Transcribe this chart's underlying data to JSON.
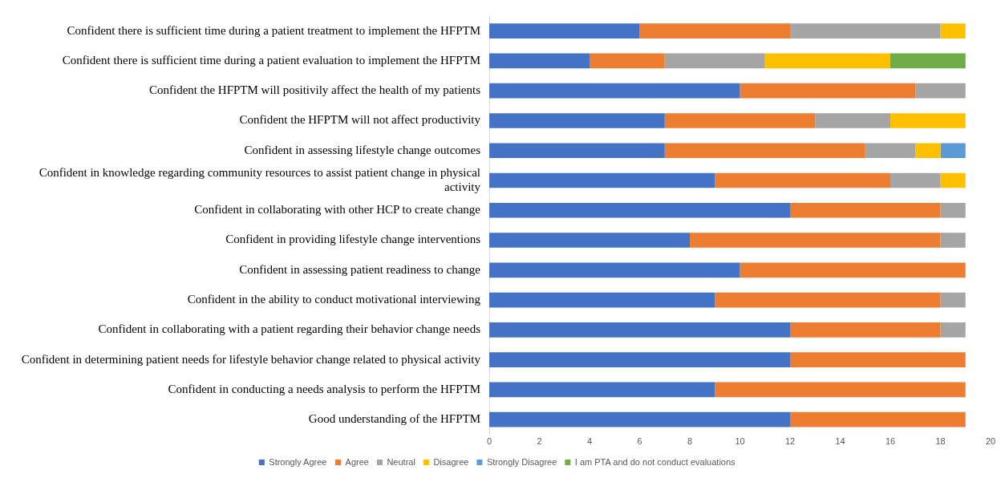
{
  "chart_data": {
    "type": "bar",
    "orientation": "horizontal",
    "stacked": true,
    "categories": [
      "Confident there is sufficient time during a patient treatment to implement the HFPTM",
      "Confident there is sufficient time during a patient evaluation to implement the HFPTM",
      "Confident the HFPTM will positivily affect the health of my patients",
      "Confident the HFPTM will not affect productivity",
      "Confident in assessing lifestyle change outcomes",
      "Confident in knowledge regarding community resources to assist patient change in physical activity",
      "Confident in collaborating with other HCP to create change",
      "Confident in providing lifestyle change interventions",
      "Confident in assessing patient readiness to change",
      "Confident in the ability to conduct motivational interviewing",
      "Confident in collaborating with a patient regarding their behavior change needs",
      "Confident in determining patient needs for lifestyle behavior change related to physical activity",
      "Confident in conducting a needs analysis to perform the HFPTM",
      "Good understanding of the HFPTM"
    ],
    "series": [
      {
        "name": "Strongly Agree",
        "color": "#4472c4",
        "values": [
          6,
          4,
          10,
          7,
          7,
          9,
          12,
          8,
          10,
          9,
          12,
          12,
          9,
          12
        ]
      },
      {
        "name": "Agree",
        "color": "#ed7d31",
        "values": [
          6,
          3,
          7,
          6,
          8,
          7,
          6,
          10,
          9,
          9,
          6,
          7,
          10,
          7
        ]
      },
      {
        "name": "Neutral",
        "color": "#a5a5a5",
        "values": [
          6,
          4,
          2,
          3,
          2,
          2,
          1,
          1,
          0,
          1,
          1,
          0,
          0,
          0
        ]
      },
      {
        "name": "Disagree",
        "color": "#ffc000",
        "values": [
          1,
          5,
          0,
          3,
          1,
          1,
          0,
          0,
          0,
          0,
          0,
          0,
          0,
          0
        ]
      },
      {
        "name": "Strongly Disagree",
        "color": "#5b9bd5",
        "values": [
          0,
          0,
          0,
          0,
          1,
          0,
          0,
          0,
          0,
          0,
          0,
          0,
          0,
          0
        ]
      },
      {
        "name": "I am PTA and do not conduct evaluations",
        "color": "#70ad47",
        "values": [
          0,
          3,
          0,
          0,
          0,
          0,
          0,
          0,
          0,
          0,
          0,
          0,
          0,
          0
        ]
      }
    ],
    "xlim": [
      0,
      20
    ],
    "xticks": [
      0,
      2,
      4,
      6,
      8,
      10,
      12,
      14,
      16,
      18,
      20
    ],
    "grid": false,
    "legend": "bottom"
  }
}
